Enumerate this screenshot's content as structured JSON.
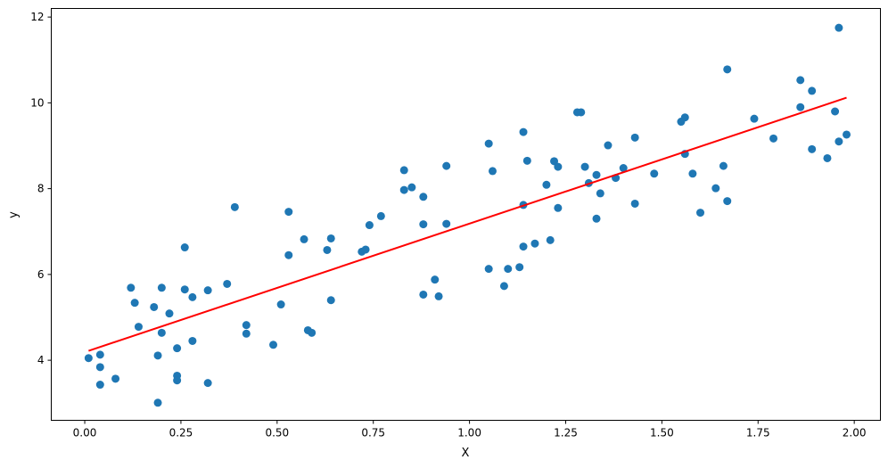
{
  "chart_data": {
    "type": "scatter",
    "title": "",
    "xlabel": "X",
    "ylabel": "y",
    "xlim": [
      -0.087,
      2.068
    ],
    "ylim": [
      2.6,
      12.2
    ],
    "grid": false,
    "xticks": [
      0.0,
      0.25,
      0.5,
      0.75,
      1.0,
      1.25,
      1.5,
      1.75,
      2.0
    ],
    "xtick_labels": [
      "0.00",
      "0.25",
      "0.50",
      "0.75",
      "1.00",
      "1.25",
      "1.50",
      "1.75",
      "2.00"
    ],
    "yticks": [
      4,
      6,
      8,
      10,
      12
    ],
    "ytick_labels": [
      "4",
      "6",
      "8",
      "10",
      "12"
    ],
    "colors": {
      "points": "#1f77b4",
      "fit_line": "#ff0000"
    },
    "series": [
      {
        "kind": "scatter",
        "points": [
          [
            0.01,
            4.05
          ],
          [
            0.04,
            3.84
          ],
          [
            0.04,
            3.43
          ],
          [
            0.04,
            4.13
          ],
          [
            0.08,
            3.57
          ],
          [
            0.12,
            5.69
          ],
          [
            0.13,
            5.34
          ],
          [
            0.14,
            4.78
          ],
          [
            0.18,
            5.24
          ],
          [
            0.19,
            3.01
          ],
          [
            0.19,
            4.11
          ],
          [
            0.2,
            5.69
          ],
          [
            0.2,
            4.64
          ],
          [
            0.22,
            5.09
          ],
          [
            0.24,
            4.28
          ],
          [
            0.24,
            3.64
          ],
          [
            0.24,
            3.53
          ],
          [
            0.26,
            6.63
          ],
          [
            0.26,
            5.65
          ],
          [
            0.28,
            5.47
          ],
          [
            0.28,
            4.45
          ],
          [
            0.32,
            3.47
          ],
          [
            0.32,
            5.63
          ],
          [
            0.37,
            5.78
          ],
          [
            0.39,
            7.57
          ],
          [
            0.42,
            4.82
          ],
          [
            0.42,
            4.62
          ],
          [
            0.49,
            4.36
          ],
          [
            0.51,
            5.3
          ],
          [
            0.53,
            7.46
          ],
          [
            0.53,
            6.45
          ],
          [
            0.57,
            6.82
          ],
          [
            0.58,
            4.7
          ],
          [
            0.59,
            4.64
          ],
          [
            0.63,
            6.57
          ],
          [
            0.64,
            6.84
          ],
          [
            0.64,
            5.4
          ],
          [
            0.72,
            6.53
          ],
          [
            0.73,
            6.58
          ],
          [
            0.74,
            7.15
          ],
          [
            0.77,
            7.36
          ],
          [
            0.83,
            8.43
          ],
          [
            0.83,
            7.97
          ],
          [
            0.85,
            8.03
          ],
          [
            0.88,
            7.81
          ],
          [
            0.88,
            7.17
          ],
          [
            0.88,
            5.53
          ],
          [
            0.91,
            5.88
          ],
          [
            0.92,
            5.49
          ],
          [
            0.94,
            7.18
          ],
          [
            0.94,
            8.53
          ],
          [
            1.05,
            9.05
          ],
          [
            1.05,
            6.13
          ],
          [
            1.06,
            8.41
          ],
          [
            1.09,
            5.73
          ],
          [
            1.1,
            6.13
          ],
          [
            1.13,
            6.17
          ],
          [
            1.14,
            9.32
          ],
          [
            1.14,
            7.62
          ],
          [
            1.14,
            6.65
          ],
          [
            1.15,
            8.65
          ],
          [
            1.17,
            6.72
          ],
          [
            1.2,
            8.09
          ],
          [
            1.21,
            6.8
          ],
          [
            1.22,
            8.64
          ],
          [
            1.23,
            8.51
          ],
          [
            1.23,
            7.55
          ],
          [
            1.28,
            9.78
          ],
          [
            1.29,
            9.78
          ],
          [
            1.3,
            8.51
          ],
          [
            1.31,
            8.13
          ],
          [
            1.33,
            8.32
          ],
          [
            1.33,
            7.3
          ],
          [
            1.34,
            7.89
          ],
          [
            1.36,
            9.01
          ],
          [
            1.38,
            8.25
          ],
          [
            1.4,
            8.48
          ],
          [
            1.43,
            9.19
          ],
          [
            1.43,
            7.65
          ],
          [
            1.48,
            8.35
          ],
          [
            1.55,
            9.56
          ],
          [
            1.56,
            9.66
          ],
          [
            1.56,
            8.81
          ],
          [
            1.58,
            8.35
          ],
          [
            1.6,
            7.44
          ],
          [
            1.64,
            8.01
          ],
          [
            1.66,
            8.53
          ],
          [
            1.67,
            10.78
          ],
          [
            1.67,
            7.71
          ],
          [
            1.74,
            9.63
          ],
          [
            1.79,
            9.17
          ],
          [
            1.86,
            10.53
          ],
          [
            1.86,
            9.9
          ],
          [
            1.89,
            10.28
          ],
          [
            1.89,
            8.92
          ],
          [
            1.93,
            8.71
          ],
          [
            1.95,
            9.8
          ],
          [
            1.96,
            11.75
          ],
          [
            1.96,
            9.1
          ],
          [
            1.98,
            9.26
          ]
        ]
      },
      {
        "kind": "line",
        "x": [
          0.01,
          1.98
        ],
        "y": [
          4.22,
          10.12
        ]
      }
    ]
  }
}
